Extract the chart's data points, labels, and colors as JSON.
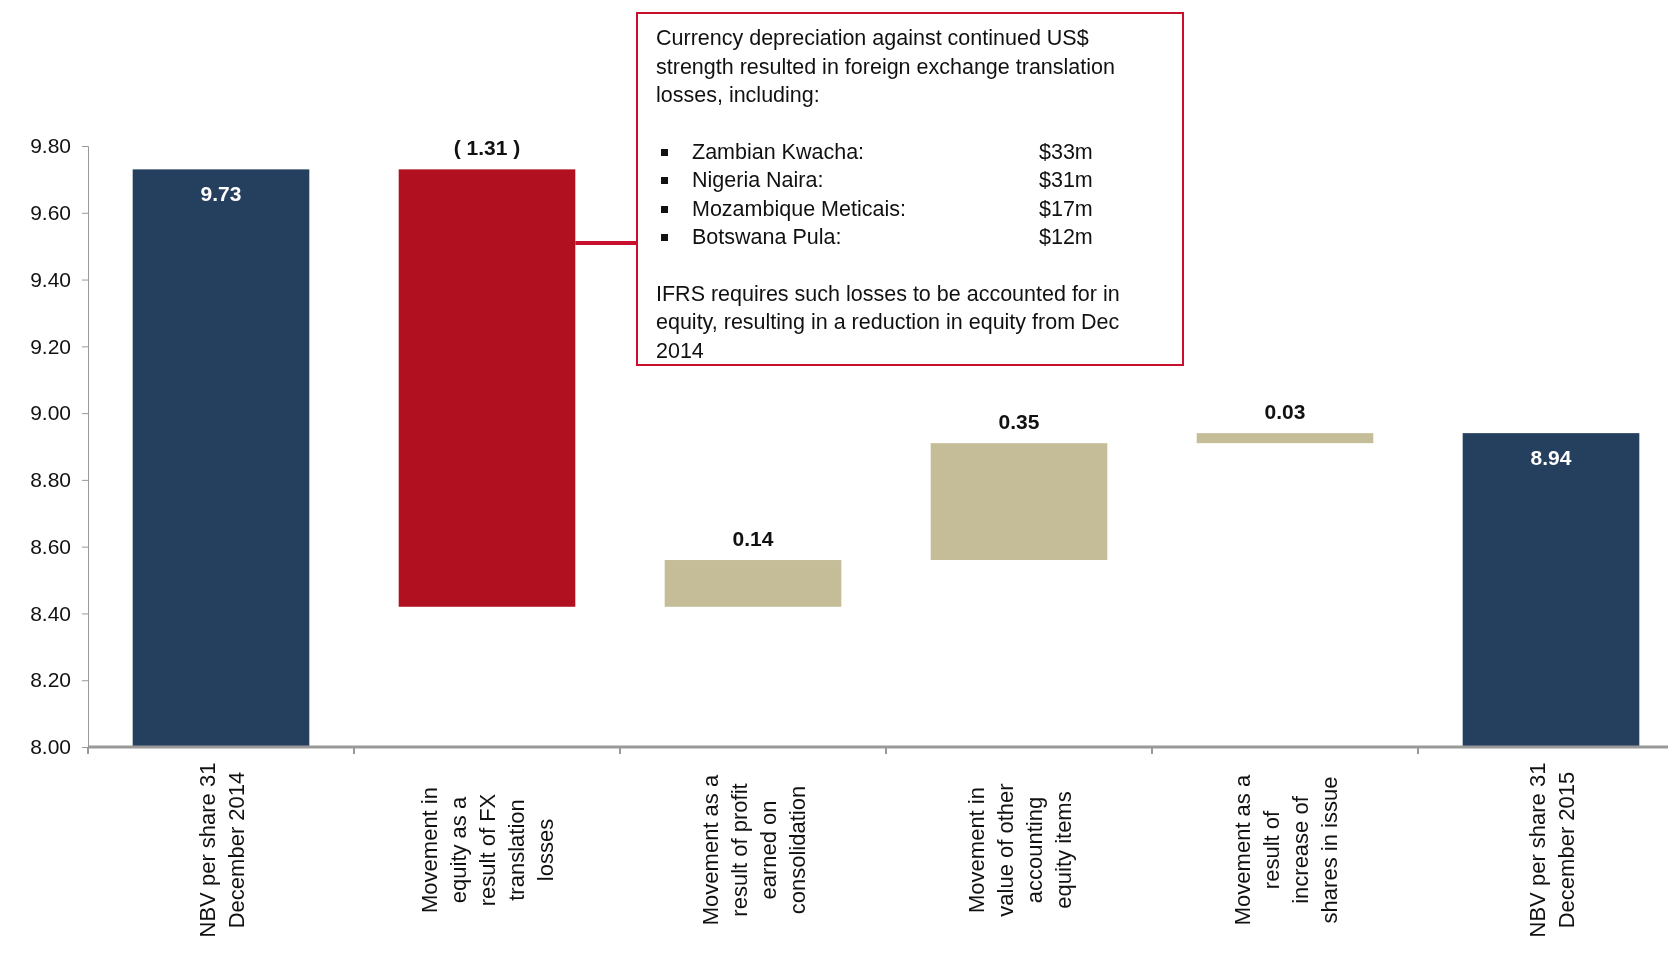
{
  "chart_data": {
    "type": "bar",
    "categories": [
      "NBV per share 31 December 2014",
      "Movement in equity as a result of FX translation losses",
      "Movement as a result of profit earned on consolidation",
      "Movement in value of other accounting equity items",
      "Movement as a result of increase of shares in issue",
      "NBV per share 31 December 2015"
    ],
    "base": [
      8.0,
      9.73,
      8.42,
      8.56,
      8.91,
      8.0
    ],
    "values": [
      1.73,
      -1.31,
      0.14,
      0.35,
      0.03,
      0.94
    ],
    "value_labels": [
      "9.73",
      "( 1.31 )",
      "0.14",
      "0.35",
      "0.03",
      "8.94"
    ],
    "colors": [
      "#253f5e",
      "#b01020",
      "#c5bd98",
      "#c5bd98",
      "#c5bd98",
      "#253f5e"
    ],
    "ylim": [
      8.0,
      9.8
    ],
    "yticks": [
      {
        "value": 8.0,
        "label": "8.00"
      },
      {
        "value": 8.2,
        "label": "8.20"
      },
      {
        "value": 8.4,
        "label": "8.40"
      },
      {
        "value": 8.6,
        "label": "8.60"
      },
      {
        "value": 8.8,
        "label": "8.80"
      },
      {
        "value": 9.0,
        "label": "9.00"
      },
      {
        "value": 9.2,
        "label": "9.20"
      },
      {
        "value": 9.4,
        "label": "9.40"
      },
      {
        "value": 9.6,
        "label": "9.60"
      },
      {
        "value": 9.8,
        "label": "9.80"
      }
    ],
    "grid": false,
    "annotations": [
      "Currency depreciation against continued US$ strength resulted in foreign exchange translation losses, including:",
      "Zambian Kwacha:",
      "$33m",
      "Nigeria Naira:",
      "$31m",
      "Mozambique Meticais:",
      "$17m",
      "Botswana Pula:",
      "$12m",
      "IFRS requires such losses to be accounted for in equity, resulting in a reduction in equity from Dec 2014"
    ]
  }
}
